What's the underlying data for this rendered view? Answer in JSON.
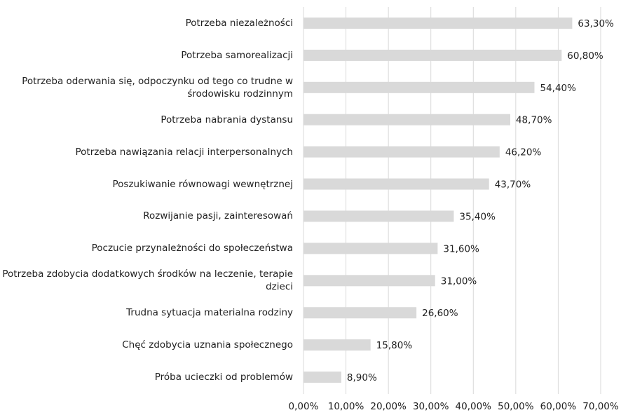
{
  "chart_data": {
    "type": "barh",
    "categories": [
      "Potrzeba niezależności",
      "Potrzeba samorealizacji",
      "Potrzeba oderwania się, odpoczynku od tego co trudne w środowisku rodzinnym",
      "Potrzeba nabrania dystansu",
      "Potrzeba nawiązania relacji interpersonalnych",
      "Poszukiwanie równowagi wewnętrznej",
      "Rozwijanie pasji, zainteresowań",
      "Poczucie przynależności do społeczeństwa",
      "Potrzeba zdobycia dodatkowych środków na leczenie, terapie dzieci",
      "Trudna sytuacja materialna rodziny",
      "Chęć zdobycia uznania społecznego",
      "Próba ucieczki od problemów"
    ],
    "values": [
      63.3,
      60.8,
      54.4,
      48.7,
      46.2,
      43.7,
      35.4,
      31.6,
      31.0,
      26.6,
      15.8,
      8.9
    ],
    "value_labels": [
      "63,30%",
      "60,80%",
      "54,40%",
      "48,70%",
      "46,20%",
      "43,70%",
      "35,40%",
      "31,60%",
      "31,00%",
      "26,60%",
      "15,80%",
      "8,90%"
    ],
    "color": "#d9d9d9",
    "xlim": [
      0,
      70
    ],
    "xticks": [
      {
        "value": 0,
        "label": "0,00%"
      },
      {
        "value": 10,
        "label": "10,00%"
      },
      {
        "value": 20,
        "label": "20,00%"
      },
      {
        "value": 30,
        "label": "30,00%"
      },
      {
        "value": 40,
        "label": "40,00%"
      },
      {
        "value": 50,
        "label": "50,00%"
      },
      {
        "value": 60,
        "label": "60,00%"
      },
      {
        "value": 70,
        "label": "70,00%"
      }
    ],
    "grid": true
  }
}
